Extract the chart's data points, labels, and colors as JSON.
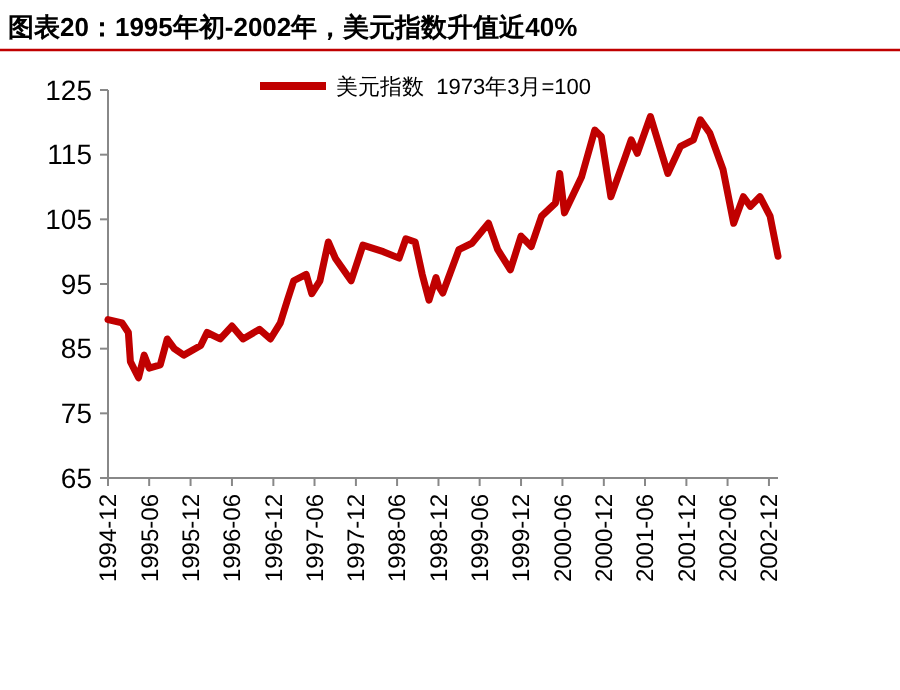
{
  "chart_data": {
    "type": "line",
    "title": "图表20：1995年初-2002年，美元指数升值近40%",
    "x": [
      "1994-12-01",
      "1995-02-01",
      "1995-03-01",
      "1995-03-10",
      "1995-04-15",
      "1995-05-10",
      "1995-06-01",
      "1995-07-20",
      "1995-08-20",
      "1995-09-20",
      "1995-11-01",
      "1996-01-15",
      "1996-02-12",
      "1996-04-10",
      "1996-06-01",
      "1996-07-20",
      "1996-10-01",
      "1996-11-18",
      "1997-01-01",
      "1997-02-01",
      "1997-03-01",
      "1997-04-25",
      "1997-05-20",
      "1997-06-25",
      "1997-08-01",
      "1997-09-01",
      "1997-11-10",
      "1998-01-01",
      "1998-04-01",
      "1998-06-10",
      "1998-07-10",
      "1998-08-20",
      "1998-09-20",
      "1998-10-20",
      "1998-11-20",
      "1998-12-01",
      "1998-12-20",
      "1999-03-01",
      "1999-04-28",
      "1999-07-10",
      "1999-08-20",
      "1999-10-15",
      "1999-12-01",
      "2000-01-15",
      "2000-03-01",
      "2000-05-01",
      "2000-05-20",
      "2000-06-10",
      "2000-08-25",
      "2000-10-22",
      "2000-11-20",
      "2001-01-01",
      "2001-03-01",
      "2001-04-01",
      "2001-04-28",
      "2001-06-25",
      "2001-09-10",
      "2001-11-05",
      "2002-01-01",
      "2002-02-01",
      "2002-03-15",
      "2002-05-12",
      "2002-06-28",
      "2002-08-10",
      "2002-09-10",
      "2002-10-22",
      "2002-12-06",
      "2003-01-10"
    ],
    "series": [
      {
        "name": "美元指数  1973年3月=100",
        "color": "#c00000",
        "values": [
          89.5,
          89,
          87.5,
          83,
          80.5,
          84,
          82,
          82.5,
          86.5,
          85,
          84,
          85.5,
          87.5,
          86.5,
          88.5,
          86.5,
          88,
          86.5,
          89,
          92.5,
          95.5,
          96.5,
          93.5,
          95.5,
          101.5,
          99,
          95.5,
          101,
          100,
          99,
          102,
          101.5,
          96.5,
          92.5,
          96,
          94.7,
          93.6,
          100.3,
          101.3,
          104.4,
          100.3,
          97.2,
          102.4,
          100.8,
          105.5,
          107.5,
          112.1,
          106,
          111.6,
          118.8,
          117.8,
          108.5,
          114.2,
          117.3,
          115.2,
          120.9,
          112.1,
          116.3,
          117.3,
          120.4,
          118.3,
          112.7,
          104.4,
          108.5,
          107,
          108.5,
          105.5,
          99.3
        ]
      }
    ],
    "xlim": [
      "1994-12-01",
      "2003-01-10"
    ],
    "xticks": [
      "1994-12",
      "1995-06",
      "1995-12",
      "1996-06",
      "1996-12",
      "1997-06",
      "1997-12",
      "1998-06",
      "1998-12",
      "1999-06",
      "1999-12",
      "2000-06",
      "2000-12",
      "2001-06",
      "2001-12",
      "2002-06",
      "2002-12"
    ],
    "ylim": [
      65,
      125
    ],
    "yticks": [
      65,
      75,
      85,
      95,
      105,
      115,
      125
    ],
    "grid": false,
    "legend": "top",
    "line_style": "solid"
  }
}
